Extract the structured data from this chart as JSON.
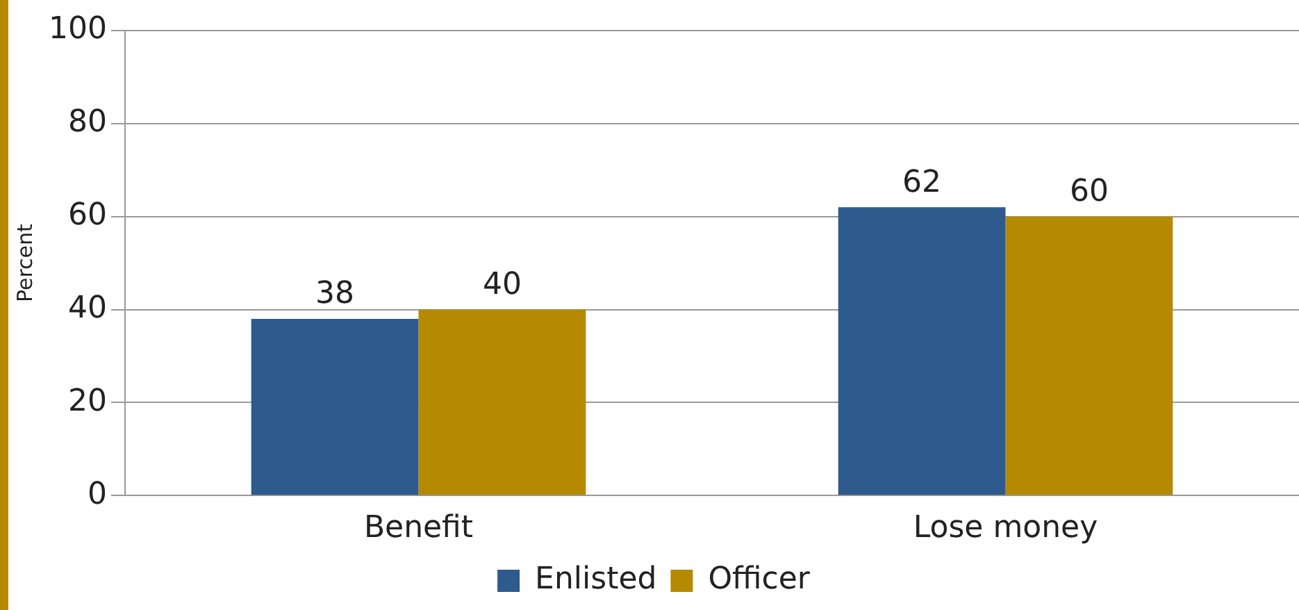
{
  "chart_data": {
    "type": "bar",
    "ylabel": "Percent",
    "categories": [
      "Benefit",
      "Lose money"
    ],
    "series": [
      {
        "name": "Enlisted",
        "color": "#2e5a8e",
        "values": [
          38,
          62
        ]
      },
      {
        "name": "Officer",
        "color": "#b58a00",
        "values": [
          40,
          60
        ]
      }
    ],
    "ylim": [
      0,
      100
    ],
    "yticks": [
      0,
      20,
      40,
      60,
      80,
      100
    ],
    "grid": "y",
    "legend": "bottom",
    "data_labels": true
  }
}
